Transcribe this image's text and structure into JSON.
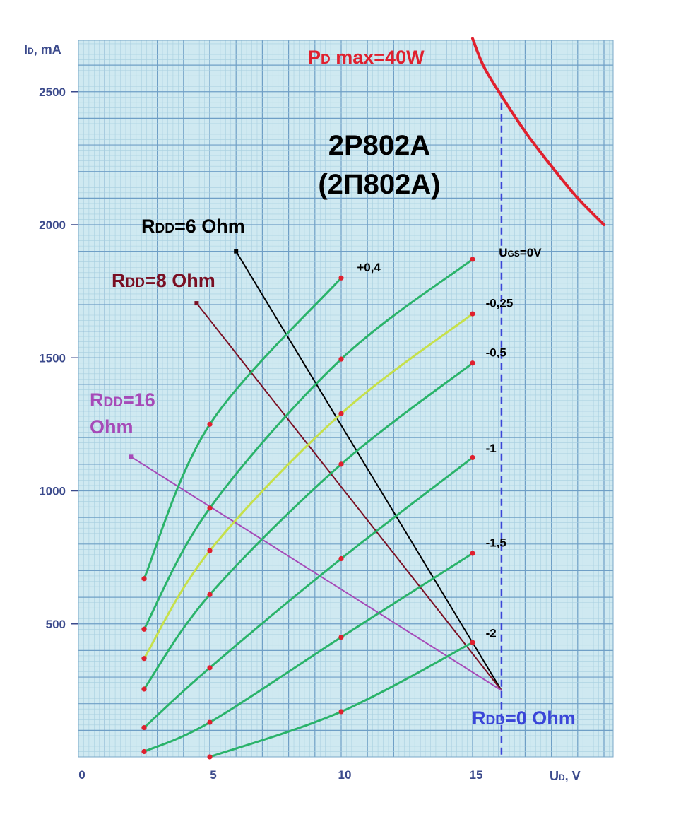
{
  "chart_data": {
    "type": "line",
    "title": "2P802A",
    "subtitle": "(2П802А)",
    "xlabel": {
      "main": "U",
      "sub": "D",
      "rest": ", V"
    },
    "ylabel": {
      "main": "I",
      "sub": "D",
      "rest": ", mA"
    },
    "xlim": [
      0,
      20
    ],
    "ylim": [
      0,
      2700
    ],
    "x_ticks": [
      0,
      5,
      10,
      15
    ],
    "x_tick_labels": [
      "0",
      "5",
      "10",
      "15"
    ],
    "y_ticks": [
      500,
      1000,
      1500,
      2000,
      2500
    ],
    "y_tick_labels": [
      "500",
      "1000",
      "1500",
      "2000",
      "2500"
    ],
    "grid": true,
    "series": [
      {
        "name": "+0,4",
        "color": "#2ab36a",
        "x": [
          2.5,
          5,
          10
        ],
        "y": [
          670,
          1250,
          1800
        ]
      },
      {
        "name": "UGS=0V",
        "color": "#2ab36a",
        "x": [
          2.5,
          5,
          10,
          15
        ],
        "y": [
          480,
          935,
          1495,
          1870
        ]
      },
      {
        "name": "-0,25",
        "color": "#c6e04a",
        "x": [
          2.5,
          5,
          10,
          15
        ],
        "y": [
          370,
          775,
          1290,
          1665
        ]
      },
      {
        "name": "-0,5",
        "color": "#2ab36a",
        "x": [
          2.5,
          5,
          10,
          15
        ],
        "y": [
          255,
          610,
          1100,
          1480
        ]
      },
      {
        "name": "-1",
        "color": "#2ab36a",
        "x": [
          2.5,
          5,
          10,
          15
        ],
        "y": [
          110,
          335,
          745,
          1125
        ]
      },
      {
        "name": "-1,5",
        "color": "#2ab36a",
        "x": [
          2.5,
          5,
          10,
          15
        ],
        "y": [
          20,
          130,
          450,
          765
        ]
      },
      {
        "name": "-2",
        "color": "#2ab36a",
        "x": [
          5,
          10,
          15
        ],
        "y": [
          0,
          170,
          430
        ]
      }
    ],
    "curve_labels": [
      {
        "text": "+0,4",
        "x": 10.6,
        "y": 1825
      },
      {
        "text": "UGS=0V",
        "x": 16.0,
        "y": 1880
      },
      {
        "text": "-0,25",
        "x": 15.5,
        "y": 1690
      },
      {
        "text": "-0,5",
        "x": 15.5,
        "y": 1505
      },
      {
        "text": "-1",
        "x": 15.5,
        "y": 1145
      },
      {
        "text": "-1,5",
        "x": 15.5,
        "y": 790
      },
      {
        "text": "-2",
        "x": 15.5,
        "y": 450
      }
    ],
    "load_lines": [
      {
        "name": "RDD=6 Ohm",
        "color": "#000000",
        "x": [
          6,
          16.1
        ],
        "y": [
          1900,
          250
        ]
      },
      {
        "name": "RDD=8 Ohm",
        "color": "#7a0f23",
        "x": [
          4.5,
          16.1
        ],
        "y": [
          1705,
          250
        ]
      },
      {
        "name": "RDD=16 Ohm",
        "color": "#a64ab8",
        "x": [
          2,
          16.1
        ],
        "y": [
          1128,
          250
        ]
      }
    ],
    "power_limit": {
      "name": "PD max=40W",
      "color": "#e0202e",
      "x": [
        15,
        15.4,
        16,
        17,
        18,
        19,
        20
      ],
      "y": [
        2700,
        2600,
        2500,
        2350,
        2220,
        2100,
        2000
      ]
    },
    "vline": {
      "x": 16.1,
      "color": "#3a45d8"
    },
    "annotations": {
      "pd": {
        "main": "P",
        "sub": "D",
        "rest": " max=40W",
        "color": "#e0202e"
      },
      "r6": {
        "main": "R",
        "sub": "DD",
        "rest": "=6 Ohm",
        "color": "#000000"
      },
      "r8": {
        "main": "R",
        "sub": "DD",
        "rest": "=8 Ohm",
        "color": "#7a0f23"
      },
      "r16a": {
        "main": "R",
        "sub": "DD",
        "rest": "=16",
        "color": "#a64ab8"
      },
      "r16b": {
        "main": "Ohm",
        "color": "#a64ab8"
      },
      "r0": {
        "main": "R",
        "sub": "DD",
        "rest": "=0 Ohm",
        "color": "#3a45d8"
      }
    }
  }
}
